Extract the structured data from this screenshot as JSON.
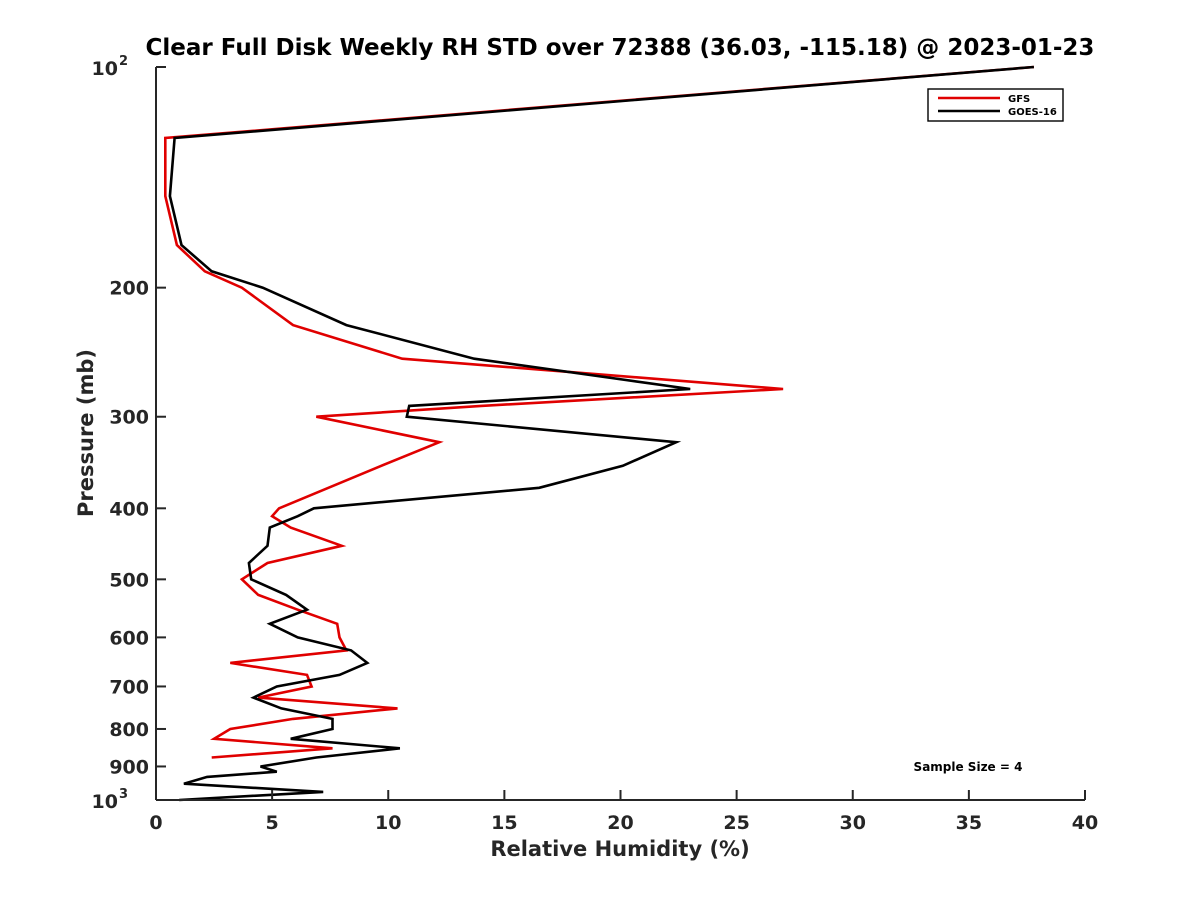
{
  "chart_data": {
    "type": "line",
    "title": "Clear Full Disk Weekly RH STD over 72388 (36.03, -115.18) @ 2023-01-23",
    "xlabel": "Relative Humidity (%)",
    "ylabel": "Pressure (mb)",
    "xlim": [
      0,
      40
    ],
    "ylim": [
      100,
      1000
    ],
    "y_scale": "log",
    "y_reversed": true,
    "grid": false,
    "legend_position": "top-right",
    "x_ticks": [
      0,
      5,
      10,
      15,
      20,
      25,
      30,
      35,
      40
    ],
    "y_ticks": [
      {
        "value": 100,
        "label": "10",
        "exp": "2"
      },
      {
        "value": 200,
        "label": "200"
      },
      {
        "value": 300,
        "label": "300"
      },
      {
        "value": 400,
        "label": "400"
      },
      {
        "value": 500,
        "label": "500"
      },
      {
        "value": 600,
        "label": "600"
      },
      {
        "value": 700,
        "label": "700"
      },
      {
        "value": 800,
        "label": "800"
      },
      {
        "value": 900,
        "label": "900"
      },
      {
        "value": 1000,
        "label": "10",
        "exp": "3"
      }
    ],
    "annotation": "Sample Size = 4",
    "series": [
      {
        "name": "GFS",
        "color": "#e00000",
        "points": [
          [
            37.8,
            100
          ],
          [
            0.4,
            125
          ],
          [
            0.4,
            150
          ],
          [
            0.9,
            175
          ],
          [
            2.1,
            190
          ],
          [
            3.7,
            200
          ],
          [
            5.9,
            225
          ],
          [
            10.6,
            250
          ],
          [
            27.0,
            275
          ],
          [
            14.0,
            290
          ],
          [
            6.9,
            300
          ],
          [
            12.2,
            325
          ],
          [
            9.7,
            350
          ],
          [
            5.3,
            400
          ],
          [
            5.0,
            410
          ],
          [
            5.8,
            425
          ],
          [
            8.0,
            450
          ],
          [
            4.8,
            475
          ],
          [
            3.7,
            500
          ],
          [
            4.4,
            525
          ],
          [
            6.1,
            550
          ],
          [
            7.8,
            575
          ],
          [
            7.9,
            600
          ],
          [
            8.2,
            625
          ],
          [
            3.2,
            650
          ],
          [
            6.5,
            675
          ],
          [
            6.7,
            700
          ],
          [
            4.4,
            725
          ],
          [
            10.4,
            750
          ],
          [
            5.9,
            775
          ],
          [
            3.2,
            800
          ],
          [
            2.5,
            825
          ],
          [
            7.6,
            850
          ],
          [
            2.4,
            875
          ]
        ]
      },
      {
        "name": "GOES-16",
        "color": "#000000",
        "points": [
          [
            37.8,
            100
          ],
          [
            0.8,
            125
          ],
          [
            0.6,
            150
          ],
          [
            1.1,
            175
          ],
          [
            2.4,
            190
          ],
          [
            4.6,
            200
          ],
          [
            8.2,
            225
          ],
          [
            13.7,
            250
          ],
          [
            23.0,
            275
          ],
          [
            10.9,
            290
          ],
          [
            10.8,
            300
          ],
          [
            22.4,
            325
          ],
          [
            20.1,
            350
          ],
          [
            16.5,
            375
          ],
          [
            6.8,
            400
          ],
          [
            6.1,
            410
          ],
          [
            4.9,
            425
          ],
          [
            4.8,
            450
          ],
          [
            4.0,
            475
          ],
          [
            4.1,
            500
          ],
          [
            5.6,
            525
          ],
          [
            6.5,
            550
          ],
          [
            4.9,
            575
          ],
          [
            6.1,
            600
          ],
          [
            8.4,
            625
          ],
          [
            9.1,
            650
          ],
          [
            7.9,
            675
          ],
          [
            5.2,
            700
          ],
          [
            4.2,
            725
          ],
          [
            5.4,
            750
          ],
          [
            7.6,
            775
          ],
          [
            7.6,
            800
          ],
          [
            5.8,
            825
          ],
          [
            10.5,
            850
          ],
          [
            6.9,
            875
          ],
          [
            4.5,
            900
          ],
          [
            5.2,
            915
          ],
          [
            2.2,
            930
          ],
          [
            1.2,
            950
          ],
          [
            7.2,
            975
          ],
          [
            1.0,
            1000
          ]
        ]
      }
    ]
  }
}
